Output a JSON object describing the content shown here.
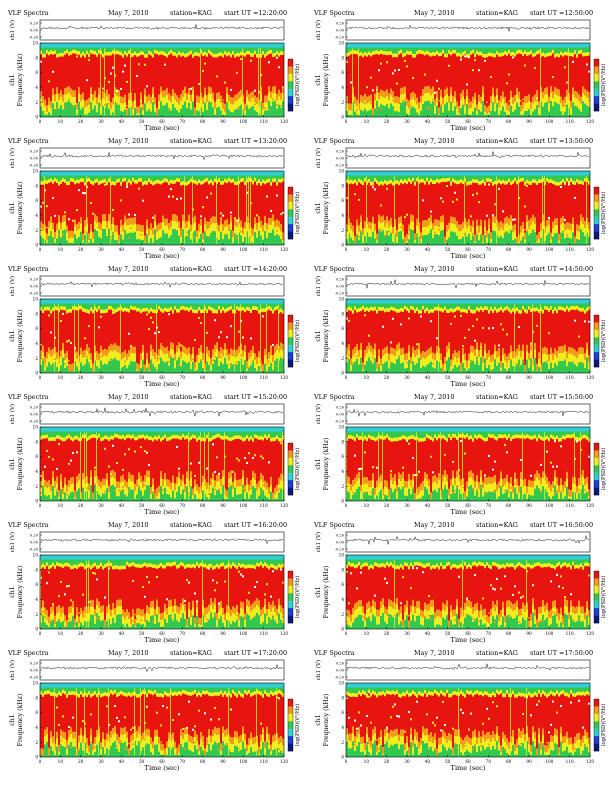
{
  "page": {
    "title": "VLF Spectra grid"
  },
  "colors": {
    "red": "#e8140f",
    "orange": "#f59a1a",
    "yellow": "#f2ee1e",
    "green": "#33c850",
    "cyan": "#30d0d8",
    "blue": "#1a3fd6",
    "navy": "#0a1a7a",
    "white": "#ffffff"
  },
  "chart_data": [
    {
      "type": "heatmap",
      "title": "VLF Spectra",
      "date": "May 7, 2010",
      "station": "station=KAG",
      "start": "start UT =12:20:00",
      "xlabel": "Time (sec)",
      "ylabel": "Frequency (kHz)",
      "channel": "ch1",
      "waveform_label": "ch1 (V)",
      "xlim": [
        0,
        120
      ],
      "ylim": [
        0,
        10
      ],
      "xticks": [
        0,
        10,
        20,
        30,
        40,
        50,
        60,
        70,
        80,
        90,
        100,
        110,
        120
      ],
      "yticks": [
        0,
        2,
        4,
        6,
        8,
        10
      ],
      "wave_ticks": [
        "0.20",
        "0.00",
        "-0.20"
      ],
      "colorbar_label": "log(PSD)(V²/Hz)"
    },
    {
      "type": "heatmap",
      "title": "VLF Spectra",
      "date": "May 7, 2010",
      "station": "station=KAG",
      "start": "start UT =12:50:00",
      "xlabel": "Time (sec)",
      "ylabel": "Frequency (kHz)",
      "channel": "ch1",
      "waveform_label": "ch1 (V)",
      "xlim": [
        0,
        120
      ],
      "ylim": [
        0,
        10
      ],
      "xticks": [
        0,
        10,
        20,
        30,
        40,
        50,
        60,
        70,
        80,
        90,
        100,
        110,
        120
      ],
      "yticks": [
        0,
        2,
        4,
        6,
        8,
        10
      ],
      "wave_ticks": [
        "0.20",
        "0.00",
        "-0.20"
      ],
      "colorbar_label": "log(PSD)(V²/Hz)"
    },
    {
      "type": "heatmap",
      "title": "VLF Spectra",
      "date": "May 7, 2010",
      "station": "station=KAG",
      "start": "start UT =13:20:00",
      "xlabel": "Time (sec)",
      "ylabel": "Frequency (kHz)",
      "channel": "ch1",
      "waveform_label": "ch1 (V)",
      "xlim": [
        0,
        120
      ],
      "ylim": [
        0,
        10
      ],
      "xticks": [
        0,
        10,
        20,
        30,
        40,
        50,
        60,
        70,
        80,
        90,
        100,
        110,
        120
      ],
      "yticks": [
        0,
        2,
        4,
        6,
        8,
        10
      ],
      "wave_ticks": [
        "0.20",
        "0.00",
        "-0.20"
      ],
      "colorbar_label": "log(PSD)(V²/Hz)"
    },
    {
      "type": "heatmap",
      "title": "VLF Spectra",
      "date": "May 7, 2010",
      "station": "station=KAG",
      "start": "start UT =13:50:00",
      "xlabel": "Time (sec)",
      "ylabel": "Frequency (kHz)",
      "channel": "ch1",
      "waveform_label": "ch1 (V)",
      "xlim": [
        0,
        120
      ],
      "ylim": [
        0,
        10
      ],
      "xticks": [
        0,
        10,
        20,
        30,
        40,
        50,
        60,
        70,
        80,
        90,
        100,
        110,
        120
      ],
      "yticks": [
        0,
        2,
        4,
        6,
        8,
        10
      ],
      "wave_ticks": [
        "0.20",
        "0.00",
        "-0.20"
      ],
      "colorbar_label": "log(PSD)(V²/Hz)"
    },
    {
      "type": "heatmap",
      "title": "VLF Spectra",
      "date": "May 7, 2010",
      "station": "station=KAG",
      "start": "start UT =14:20:00",
      "xlabel": "Time (sec)",
      "ylabel": "Frequency (kHz)",
      "channel": "ch1",
      "waveform_label": "ch1 (V)",
      "xlim": [
        0,
        120
      ],
      "ylim": [
        0,
        10
      ],
      "xticks": [
        0,
        10,
        20,
        30,
        40,
        50,
        60,
        70,
        80,
        90,
        100,
        110,
        120
      ],
      "yticks": [
        0,
        2,
        4,
        6,
        8,
        10
      ],
      "wave_ticks": [
        "0.20",
        "0.00",
        "-0.20"
      ],
      "colorbar_label": "log(PSD)(V²/Hz)"
    },
    {
      "type": "heatmap",
      "title": "VLF Spectra",
      "date": "May 7, 2010",
      "station": "station=KAG",
      "start": "start UT =14:50:00",
      "xlabel": "Time (sec)",
      "ylabel": "Frequency (kHz)",
      "channel": "ch1",
      "waveform_label": "ch1 (V)",
      "xlim": [
        0,
        120
      ],
      "ylim": [
        0,
        10
      ],
      "xticks": [
        0,
        10,
        20,
        30,
        40,
        50,
        60,
        70,
        80,
        90,
        100,
        110,
        120
      ],
      "yticks": [
        0,
        2,
        4,
        6,
        8,
        10
      ],
      "wave_ticks": [
        "0.20",
        "0.00",
        "-0.20"
      ],
      "colorbar_label": "log(PSD)(V²/Hz)"
    },
    {
      "type": "heatmap",
      "title": "VLF Spectra",
      "date": "May 7, 2010",
      "station": "station=KAG",
      "start": "start UT =15:20:00",
      "xlabel": "Time (sec)",
      "ylabel": "Frequency (kHz)",
      "channel": "ch1",
      "waveform_label": "ch1 (V)",
      "xlim": [
        0,
        120
      ],
      "ylim": [
        0,
        10
      ],
      "xticks": [
        0,
        10,
        20,
        30,
        40,
        50,
        60,
        70,
        80,
        90,
        100,
        110,
        120
      ],
      "yticks": [
        0,
        2,
        4,
        6,
        8,
        10
      ],
      "wave_ticks": [
        "0.20",
        "0.00",
        "-0.20"
      ],
      "colorbar_label": "log(PSD)(V²/Hz)"
    },
    {
      "type": "heatmap",
      "title": "VLF Spectra",
      "date": "May 7, 2010",
      "station": "station=KAG",
      "start": "start UT =15:50:00",
      "xlabel": "Time (sec)",
      "ylabel": "Frequency (kHz)",
      "channel": "ch1",
      "waveform_label": "ch1 (V)",
      "xlim": [
        0,
        120
      ],
      "ylim": [
        0,
        10
      ],
      "xticks": [
        0,
        10,
        20,
        30,
        40,
        50,
        60,
        70,
        80,
        90,
        100,
        110,
        120
      ],
      "yticks": [
        0,
        2,
        4,
        6,
        8,
        10
      ],
      "wave_ticks": [
        "0.20",
        "0.00",
        "-0.20"
      ],
      "colorbar_label": "log(PSD)(V²/Hz)"
    },
    {
      "type": "heatmap",
      "title": "VLF Spectra",
      "date": "May 7, 2010",
      "station": "station=KAG",
      "start": "start UT =16:20:00",
      "xlabel": "Time (sec)",
      "ylabel": "Frequency (kHz)",
      "channel": "ch1",
      "waveform_label": "ch1 (V)",
      "xlim": [
        0,
        120
      ],
      "ylim": [
        0,
        10
      ],
      "xticks": [
        0,
        10,
        20,
        30,
        40,
        50,
        60,
        70,
        80,
        90,
        100,
        110,
        120
      ],
      "yticks": [
        0,
        2,
        4,
        6,
        8,
        10
      ],
      "wave_ticks": [
        "0.20",
        "0.00",
        "-0.20"
      ],
      "colorbar_label": "log(PSD)(V²/Hz)"
    },
    {
      "type": "heatmap",
      "title": "VLF Spectra",
      "date": "May 7, 2010",
      "station": "station=KAG",
      "start": "start UT =16:50:00",
      "xlabel": "Time (sec)",
      "ylabel": "Frequency (kHz)",
      "channel": "ch1",
      "waveform_label": "ch1 (V)",
      "xlim": [
        0,
        120
      ],
      "ylim": [
        0,
        10
      ],
      "xticks": [
        0,
        10,
        20,
        30,
        40,
        50,
        60,
        70,
        80,
        90,
        100,
        110,
        120
      ],
      "yticks": [
        0,
        2,
        4,
        6,
        8,
        10
      ],
      "wave_ticks": [
        "0.20",
        "0.00",
        "-0.20"
      ],
      "colorbar_label": "log(PSD)(V²/Hz)"
    },
    {
      "type": "heatmap",
      "title": "VLF Spectra",
      "date": "May 7, 2010",
      "station": "station=KAG",
      "start": "start UT =17:20:00",
      "xlabel": "Time (sec)",
      "ylabel": "Frequency (kHz)",
      "channel": "ch1",
      "waveform_label": "ch1 (V)",
      "xlim": [
        0,
        120
      ],
      "ylim": [
        0,
        10
      ],
      "xticks": [
        0,
        10,
        20,
        30,
        40,
        50,
        60,
        70,
        80,
        90,
        100,
        110,
        120
      ],
      "yticks": [
        0,
        2,
        4,
        6,
        8,
        10
      ],
      "wave_ticks": [
        "0.20",
        "0.00",
        "-0.20"
      ],
      "colorbar_label": "log(PSD)(V²/Hz)"
    },
    {
      "type": "heatmap",
      "title": "VLF Spectra",
      "date": "May 7, 2010",
      "station": "station=KAG",
      "start": "start UT =17:50:00",
      "xlabel": "Time (sec)",
      "ylabel": "Frequency (kHz)",
      "channel": "ch1",
      "waveform_label": "ch1 (V)",
      "xlim": [
        0,
        120
      ],
      "ylim": [
        0,
        10
      ],
      "xticks": [
        0,
        10,
        20,
        30,
        40,
        50,
        60,
        70,
        80,
        90,
        100,
        110,
        120
      ],
      "yticks": [
        0,
        2,
        4,
        6,
        8,
        10
      ],
      "wave_ticks": [
        "0.20",
        "0.00",
        "-0.20"
      ],
      "colorbar_label": "log(PSD)(V²/Hz)"
    }
  ]
}
